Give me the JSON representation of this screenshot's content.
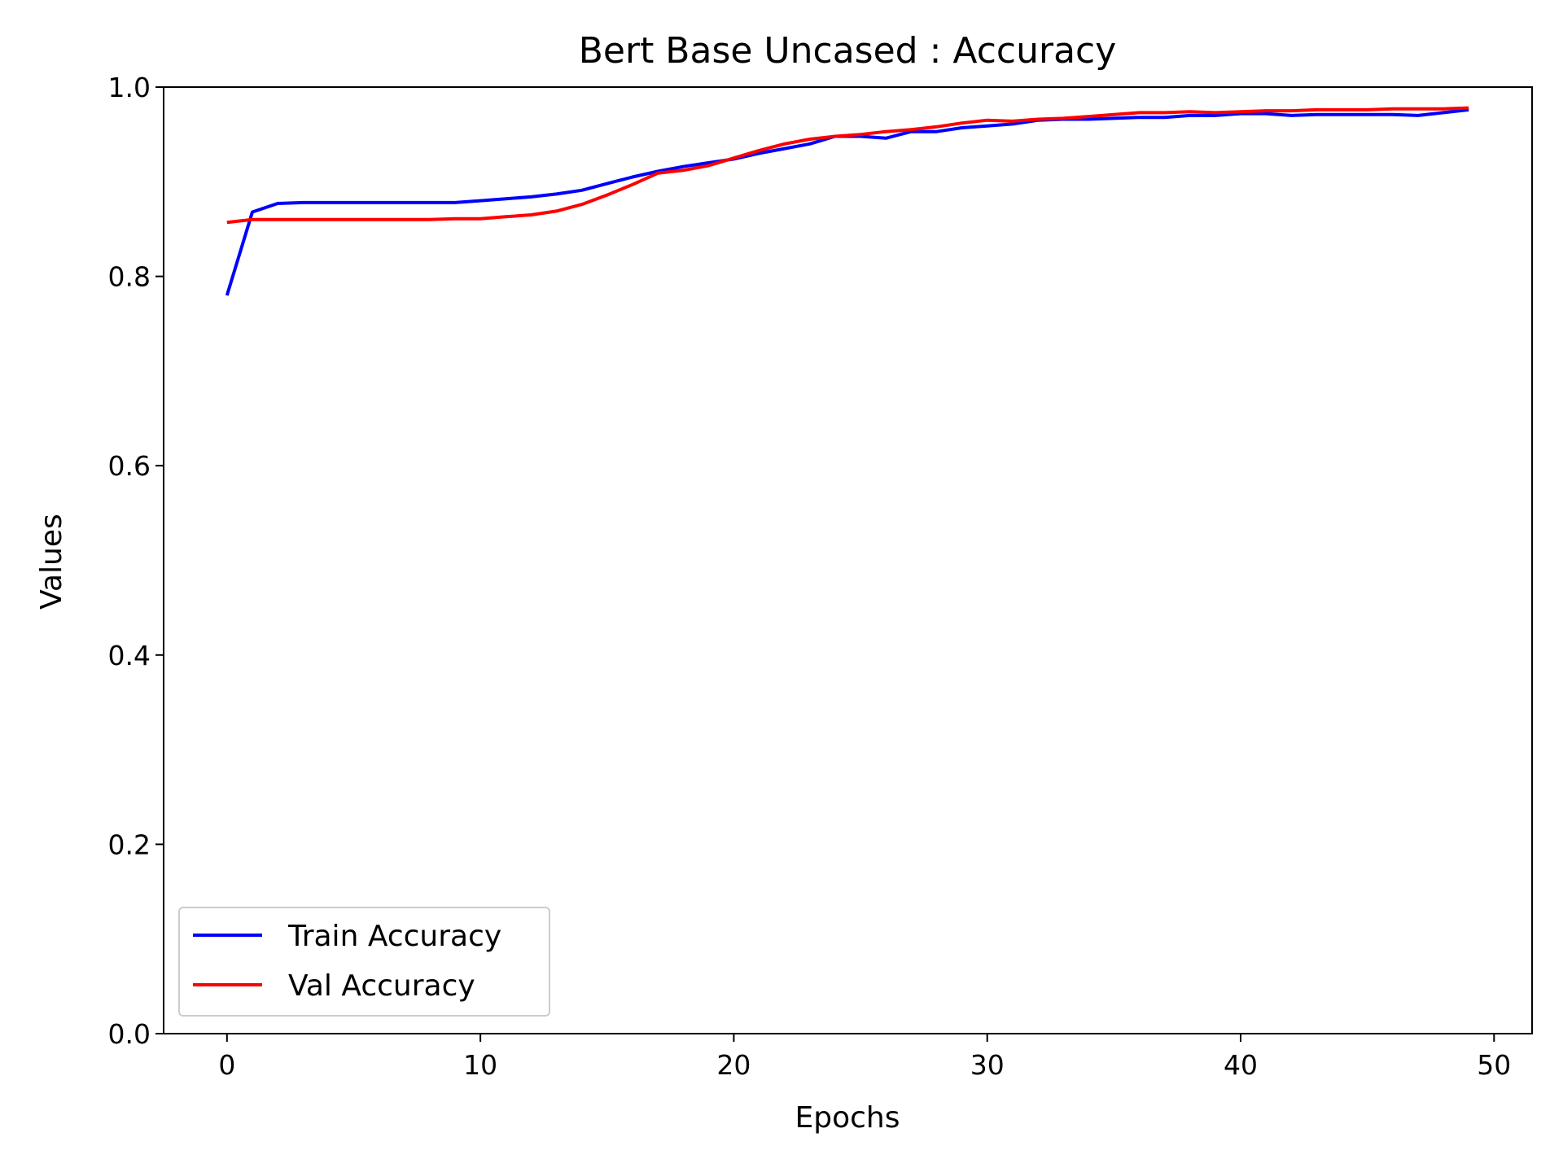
{
  "chart_data": {
    "type": "line",
    "title": "Bert Base Uncased : Accuracy",
    "xlabel": "Epochs",
    "ylabel": "Values",
    "xlim": [
      -2.5,
      51.5
    ],
    "ylim": [
      0.0,
      1.0
    ],
    "xticks": [
      "0",
      "10",
      "20",
      "30",
      "40",
      "50"
    ],
    "yticks": [
      "0.0",
      "0.2",
      "0.4",
      "0.6",
      "0.8",
      "1.0"
    ],
    "grid": false,
    "legend_position": "lower-left",
    "x": [
      0,
      1,
      2,
      3,
      4,
      5,
      6,
      7,
      8,
      9,
      10,
      11,
      12,
      13,
      14,
      15,
      16,
      17,
      18,
      19,
      20,
      21,
      22,
      23,
      24,
      25,
      26,
      27,
      28,
      29,
      30,
      31,
      32,
      33,
      34,
      35,
      36,
      37,
      38,
      39,
      40,
      41,
      42,
      43,
      44,
      45,
      46,
      47,
      48,
      49
    ],
    "series": [
      {
        "name": "Train Accuracy",
        "color": "#0000ff",
        "values": [
          0.78,
          0.868,
          0.877,
          0.878,
          0.878,
          0.878,
          0.878,
          0.878,
          0.878,
          0.878,
          0.88,
          0.882,
          0.884,
          0.887,
          0.891,
          0.898,
          0.905,
          0.911,
          0.916,
          0.92,
          0.924,
          0.93,
          0.935,
          0.94,
          0.948,
          0.948,
          0.946,
          0.953,
          0.953,
          0.957,
          0.959,
          0.961,
          0.965,
          0.966,
          0.966,
          0.967,
          0.968,
          0.968,
          0.97,
          0.97,
          0.972,
          0.972,
          0.97,
          0.971,
          0.971,
          0.971,
          0.971,
          0.97,
          0.973,
          0.976
        ]
      },
      {
        "name": "Val Accuracy",
        "color": "#ff0000",
        "values": [
          0.857,
          0.86,
          0.86,
          0.86,
          0.86,
          0.86,
          0.86,
          0.86,
          0.86,
          0.861,
          0.861,
          0.863,
          0.865,
          0.869,
          0.876,
          0.886,
          0.897,
          0.909,
          0.912,
          0.917,
          0.925,
          0.933,
          0.94,
          0.945,
          0.948,
          0.95,
          0.953,
          0.955,
          0.958,
          0.962,
          0.965,
          0.964,
          0.966,
          0.967,
          0.969,
          0.971,
          0.973,
          0.973,
          0.974,
          0.973,
          0.974,
          0.975,
          0.975,
          0.976,
          0.976,
          0.976,
          0.977,
          0.977,
          0.977,
          0.978
        ]
      }
    ]
  }
}
